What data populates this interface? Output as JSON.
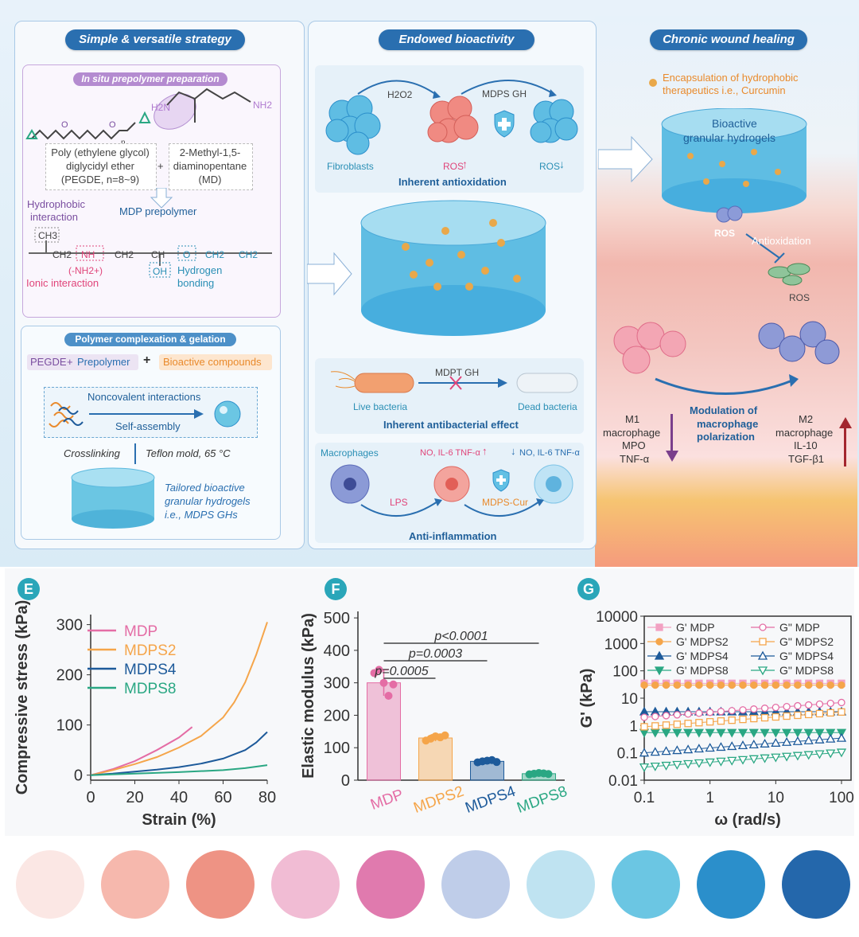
{
  "colors": {
    "accent": "#2a6fb0",
    "pink": "#e46da5",
    "orange": "#f5a54a",
    "navy": "#1d5a9a",
    "green": "#2aa783",
    "purple": "#a063c4"
  },
  "left": {
    "header": "Simple & versatile strategy",
    "prep_title": "In situ prepolymer preparation",
    "pegde_label": [
      "Poly (ethylene glycol)",
      "diglycidyl ether",
      "(PEGDE, n=8~9)"
    ],
    "md_label": [
      "2-Methyl-1,5-",
      "diaminopentane",
      "(MD)"
    ],
    "plus": "+",
    "mdp_prepolymer": "MDP prepolymer",
    "hydrophobic": [
      "Hydrophobic",
      "interaction"
    ],
    "ionic": "Ionic interaction",
    "hydrogen": [
      "Hydrogen",
      "bonding"
    ],
    "chain": {
      "ch3": "CH3",
      "ch2a": "CH2",
      "nh": "NH",
      "ch2b": "CH2",
      "ch": "CH",
      "oh": "OH",
      "o": "O",
      "ch2c": "CH2",
      "ch2d": "CH2",
      "nh2": "(-NH2+)",
      "h2n": "H2N",
      "nh2b": "NH2",
      "n": "n"
    },
    "complex_title": "Polymer complexation & gelation",
    "pegde_pre": "PEGDE",
    "prepolymer": "Prepolymer",
    "plus2": "+",
    "bioactive": "Bioactive compounds",
    "noncovalent": "Noncovalent interactions",
    "selfassembly": "Self-assembly",
    "crosslinking": "Crosslinking",
    "teflon": "Teflon mold, 65 °C",
    "tailored": [
      "Tailored bioactive",
      "granular hydrogels",
      "i.e., MDPS GHs"
    ]
  },
  "middle": {
    "header": "Endowed bioactivity",
    "h2o2": "H2O2",
    "mdps_gh": "MDPS GH",
    "fibroblasts": "Fibroblasts",
    "ros_up": "ROS",
    "ros_down": "ROS",
    "antiox": "Inherent antioxidation",
    "mdpt_gh": "MDPT GH",
    "live": "Live bacteria",
    "dead": "Dead bacteria",
    "antibac": "Inherent antibacterial effect",
    "macrophages": "Macrophages",
    "no_up": "NO, IL-6 TNF-α",
    "no_down": "NO, IL-6 TNF-α",
    "lps": "LPS",
    "mdps_cur": "MDPS-Cur",
    "antiinflam": "Anti-inflammation"
  },
  "right": {
    "header": "Chronic wound healing",
    "encaps": [
      "Encapsulation of hydrophobic",
      "therapeutics i.e., Curcumin"
    ],
    "bioactive_gh": [
      "Bioactive",
      "granular hydrogels"
    ],
    "ros": "ROS",
    "antioxidation": "Antioxidation",
    "ros2": "ROS",
    "m1": [
      "M1",
      "macrophage",
      "MPO",
      "TNF-α"
    ],
    "modulation": [
      "Modulation of",
      "macrophage",
      "polarization"
    ],
    "m2": [
      "M2",
      "macrophage",
      "IL-10",
      "TGF-β1"
    ]
  },
  "panels": {
    "E": "E",
    "F": "F",
    "G": "G"
  },
  "chart_data": [
    {
      "type": "line",
      "panel": "E",
      "xlabel": "Strain (%)",
      "ylabel": "Compressive stress (kPa)",
      "xlim": [
        0,
        80
      ],
      "ylim": [
        -10,
        320
      ],
      "xticks": [
        0,
        20,
        40,
        60,
        80
      ],
      "yticks": [
        0,
        100,
        200,
        300
      ],
      "series": [
        {
          "name": "MDP",
          "color": "#e46da5",
          "x": [
            0,
            10,
            20,
            30,
            40,
            46
          ],
          "y": [
            0,
            12,
            28,
            50,
            75,
            96
          ]
        },
        {
          "name": "MDPS2",
          "color": "#f5a54a",
          "x": [
            0,
            10,
            20,
            30,
            40,
            50,
            60,
            65,
            70,
            75,
            80
          ],
          "y": [
            0,
            10,
            22,
            36,
            55,
            78,
            115,
            145,
            185,
            240,
            305
          ]
        },
        {
          "name": "MDPS4",
          "color": "#1d5a9a",
          "x": [
            0,
            10,
            20,
            30,
            40,
            50,
            60,
            70,
            75,
            80
          ],
          "y": [
            0,
            3,
            7,
            11,
            16,
            23,
            33,
            50,
            65,
            86
          ]
        },
        {
          "name": "MDPS8",
          "color": "#2aa783",
          "x": [
            0,
            20,
            40,
            60,
            70,
            80
          ],
          "y": [
            0,
            3,
            6,
            10,
            14,
            20
          ]
        }
      ]
    },
    {
      "type": "bar",
      "panel": "F",
      "ylabel": "Elastic modulus (kPa)",
      "ylim": [
        0,
        520
      ],
      "yticks": [
        0,
        100,
        200,
        300,
        400,
        500
      ],
      "categories": [
        "MDP",
        "MDPS2",
        "MDPS4",
        "MDPS8"
      ],
      "values": [
        300,
        130,
        58,
        20
      ],
      "errors": [
        40,
        10,
        5,
        3
      ],
      "colors": [
        "#e46da5",
        "#f5a54a",
        "#1d5a9a",
        "#2aa783"
      ],
      "points": [
        [
          330,
          340,
          300,
          260,
          295
        ],
        [
          122,
          128,
          135,
          132,
          138
        ],
        [
          55,
          58,
          60,
          62,
          56
        ],
        [
          18,
          20,
          22,
          21,
          19
        ]
      ],
      "annotations": [
        "p=0.0005",
        "p=0.0003",
        "p<0.0001"
      ]
    },
    {
      "type": "scatter",
      "panel": "G",
      "xlabel": "ω (rad/s)",
      "ylabel": "G' (kPa)",
      "xscale": "log",
      "yscale": "log",
      "xlim": [
        0.1,
        100
      ],
      "ylim": [
        0.01,
        10000
      ],
      "xticks": [
        "0.1",
        "1",
        "10",
        "100"
      ],
      "yticks": [
        "0.01",
        "0.1",
        "1",
        "10",
        "100",
        "1000",
        "10000"
      ],
      "series": [
        {
          "name": "G' MDP",
          "color": "#f2a1c2",
          "marker": "square",
          "filled": true,
          "level": 35
        },
        {
          "name": "G' MDPS2",
          "color": "#f5a54a",
          "marker": "circle",
          "filled": true,
          "level": 30
        },
        {
          "name": "G' MDPS4",
          "color": "#1d5a9a",
          "marker": "triangle-up",
          "filled": true,
          "level": 3.2
        },
        {
          "name": "G' MDPS8",
          "color": "#2aa783",
          "marker": "triangle-down",
          "filled": true,
          "level": 0.55
        },
        {
          "name": "G\" MDP",
          "color": "#e46da5",
          "marker": "circle",
          "filled": false,
          "level": 2
        },
        {
          "name": "G\" MDPS2",
          "color": "#f5a54a",
          "marker": "square",
          "filled": false,
          "level": 0.9
        },
        {
          "name": "G\" MDPS4",
          "color": "#1d5a9a",
          "marker": "triangle-up",
          "filled": false,
          "level": 0.1
        },
        {
          "name": "G\" MDPS8",
          "color": "#2aa783",
          "marker": "triangle-down",
          "filled": false,
          "level": 0.03
        }
      ]
    }
  ],
  "swatches": [
    "#fbe7e4",
    "#f6b8ad",
    "#ee9384",
    "#f1bcd4",
    "#e07aae",
    "#bfcde9",
    "#bfe3f1",
    "#6bc6e3",
    "#2b8fcb",
    "#2467ab"
  ]
}
